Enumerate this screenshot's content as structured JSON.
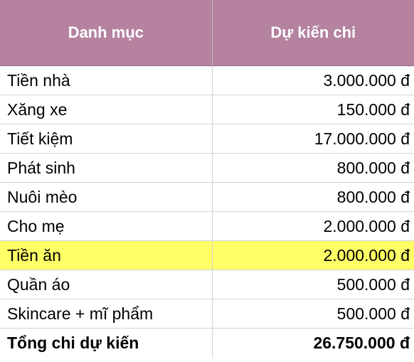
{
  "table": {
    "headers": {
      "category": "Danh mục",
      "amount": "Dự kiến chi"
    },
    "rows": [
      {
        "category": "Tiền nhà",
        "amount": "3.000.000 đ"
      },
      {
        "category": "Xăng xe",
        "amount": "150.000 đ"
      },
      {
        "category": "Tiết kiệm",
        "amount": "17.000.000 đ"
      },
      {
        "category": "Phát sinh",
        "amount": "800.000 đ"
      },
      {
        "category": "Nuôi mèo",
        "amount": "800.000 đ"
      },
      {
        "category": "Cho mẹ",
        "amount": "2.000.000 đ"
      },
      {
        "category": "Tiền ăn",
        "amount": "2.000.000 đ",
        "highlighted": true
      },
      {
        "category": "Quần áo",
        "amount": "500.000 đ"
      },
      {
        "category": "Skincare + mĩ phẩm",
        "amount": "500.000 đ"
      }
    ],
    "total": {
      "category": "Tổng chi dự kiến",
      "amount": "26.750.000 đ"
    }
  },
  "colors": {
    "header_bg": "#b5829f",
    "header_text": "#ffffff",
    "highlight_bg": "#ffff66"
  }
}
